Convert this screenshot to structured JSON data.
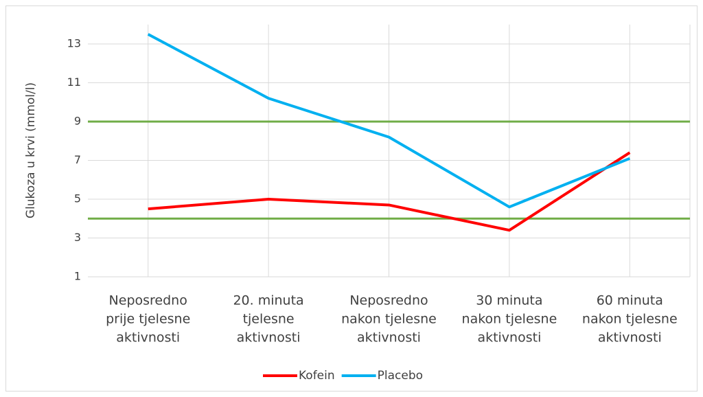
{
  "chart_data": {
    "type": "line",
    "y_label": "Glukoza u krvi (mmol/l)",
    "categories": [
      [
        "Neposredno",
        "prije tjelesne",
        "aktivnosti"
      ],
      [
        "20. minuta",
        "tjelesne",
        "aktivnosti"
      ],
      [
        "Neposredno",
        "nakon tjelesne",
        "aktivnosti"
      ],
      [
        "30 minuta",
        "nakon tjelesne",
        "aktivnosti"
      ],
      [
        "60 minuta",
        "nakon tjelesne",
        "aktivnosti"
      ]
    ],
    "series": [
      {
        "name": "Kofein",
        "color": "#ff0000",
        "values": [
          4.5,
          5.0,
          4.7,
          3.4,
          7.4
        ]
      },
      {
        "name": "Placebo",
        "color": "#00b0f0",
        "values": [
          13.5,
          10.2,
          8.2,
          4.6,
          7.1
        ]
      }
    ],
    "reference_lines": [
      {
        "value": 9,
        "color": "#70ad47"
      },
      {
        "value": 4,
        "color": "#70ad47"
      }
    ],
    "ylim": [
      1,
      14
    ],
    "yticks": [
      1,
      3,
      5,
      7,
      9,
      11,
      13
    ],
    "grid": true,
    "legend": "bottom"
  }
}
